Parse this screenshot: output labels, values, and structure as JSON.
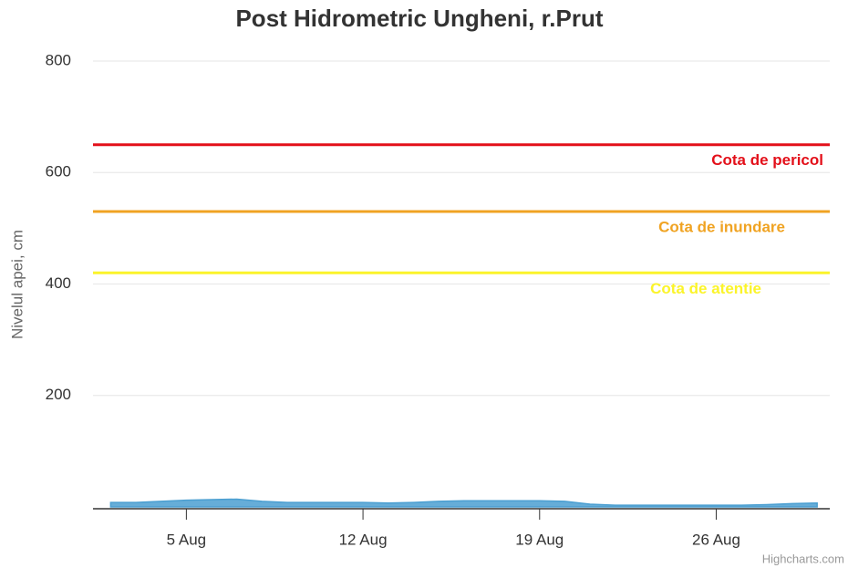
{
  "chart_data": {
    "type": "area",
    "title": "Post Hidrometric Ungheni, r.Prut",
    "y_label": "Nivelul apei, cm",
    "credits": "Highcharts.com",
    "x": [
      2,
      3,
      4,
      5,
      6,
      7,
      8,
      9,
      10,
      11,
      12,
      13,
      14,
      15,
      16,
      17,
      18,
      19,
      20,
      21,
      22,
      23,
      24,
      25,
      26,
      27,
      28,
      29,
      30
    ],
    "series": [
      {
        "color": "#4b9fd1",
        "values": [
          8,
          8,
          10,
          12,
          13,
          14,
          10,
          8,
          8,
          8,
          8,
          7,
          8,
          10,
          11,
          11,
          11,
          11,
          10,
          5,
          3,
          3,
          3,
          3,
          3,
          3,
          4,
          6,
          7
        ]
      }
    ],
    "xlim": [
      1.3,
      30.5
    ],
    "xticks": [
      {
        "value": 5,
        "label": "5 Aug"
      },
      {
        "value": 12,
        "label": "12 Aug"
      },
      {
        "value": 19,
        "label": "19 Aug"
      },
      {
        "value": 26,
        "label": "26 Aug"
      }
    ],
    "ylim": [
      0,
      800
    ],
    "yticks": [
      200,
      400,
      600,
      800
    ],
    "grid": true,
    "plot_lines": [
      {
        "value": 650,
        "label": "Cota de pericol",
        "color": "#e3101a"
      },
      {
        "value": 530,
        "label": "Cota de inundare",
        "color": "#f0a322"
      },
      {
        "value": 420,
        "label": "Cota de atentie",
        "color": "#fbf42a"
      }
    ]
  }
}
